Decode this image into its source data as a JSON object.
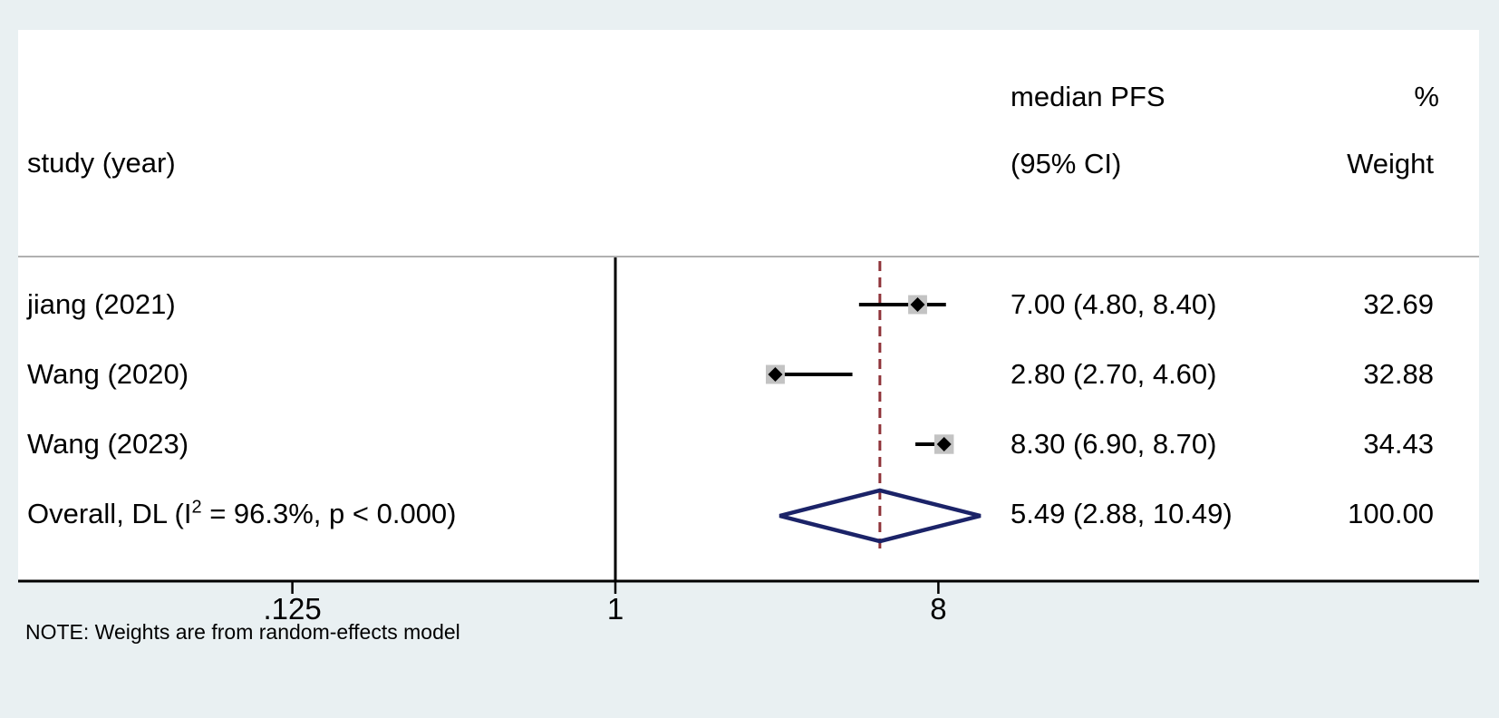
{
  "figure": {
    "note": "NOTE: Weights are from random-effects model"
  },
  "header": {
    "study_col": "study (year)",
    "effect_col_line1": "median PFS",
    "effect_col_line2": "(95% CI)",
    "weight_col_line1": "%",
    "weight_col_line2": "Weight"
  },
  "chart_data": {
    "type": "forest",
    "x_scale": "log2",
    "x_tick_labels": [
      ".125",
      "1",
      "8"
    ],
    "x_tick_values": [
      0.125,
      1,
      8
    ],
    "x_range": [
      0.06,
      24
    ],
    "reference_line_x": 1,
    "grid": false,
    "legend": false,
    "studies": [
      {
        "label": "jiang (2021)",
        "effect": 7.0,
        "ci_low": 4.8,
        "ci_high": 8.4,
        "effect_label": "7.00 (4.80, 8.40)",
        "weight": 32.69,
        "weight_label": "32.69"
      },
      {
        "label": "Wang (2020)",
        "effect": 2.8,
        "ci_low": 2.7,
        "ci_high": 4.6,
        "effect_label": "2.80 (2.70, 4.60)",
        "weight": 32.88,
        "weight_label": "32.88"
      },
      {
        "label": "Wang (2023)",
        "effect": 8.3,
        "ci_low": 6.9,
        "ci_high": 8.7,
        "effect_label": "8.30 (6.90, 8.70)",
        "weight": 34.43,
        "weight_label": "34.43"
      }
    ],
    "overall": {
      "label_pre": "Overall, DL (I",
      "label_sup": "2",
      "label_post": " = 96.3%, p < 0.000)",
      "effect": 5.49,
      "ci_low": 2.88,
      "ci_high": 10.49,
      "effect_label": "5.49 (2.88, 10.49)",
      "weight": 100.0,
      "weight_label": "100.00"
    },
    "colors": {
      "background": "#e9f0f2",
      "plot_background": "#ffffff",
      "axis": "#000000",
      "separator": "#b0b0b0",
      "overall_dashed_line": "#8f3339",
      "pooled_diamond": "#1b2368",
      "study_marker": "#000000",
      "weight_box": "#c3c3c3",
      "text": "#000000"
    }
  }
}
